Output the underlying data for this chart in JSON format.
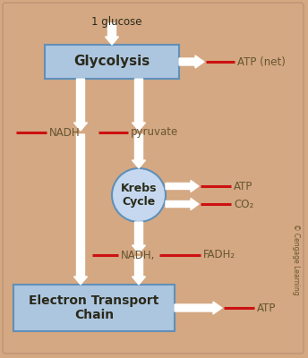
{
  "bg_color": "#d4a882",
  "box_color": "#adc6e0",
  "box_edge_color": "#6090b8",
  "circle_color": "#c5d8ef",
  "circle_edge_color": "#6090b8",
  "red_line_color": "#cc1111",
  "text_color": "#665533",
  "dark_text_color": "#2a2a1a",
  "border_color": "#c09878",
  "title": "1 glucose",
  "glycolysis_label": "Glycolysis",
  "krebs_label": "Krebs\nCycle",
  "etc_label": "Electron Transport\nChain",
  "atp_net_label": "ATP (net)",
  "atp_krebs_label": "ATP",
  "co2_label": "CO₂",
  "nadh_left_label": "NADH",
  "pyruvate_label": "pyruvate",
  "nadh_fadh2_label": "NADH,",
  "fadh2_label": "FADH₂",
  "atp_etc_label": "ATP",
  "cengage_label": "© Cengage Learning",
  "fig_width": 3.44,
  "fig_height": 4.0,
  "dpi": 100
}
